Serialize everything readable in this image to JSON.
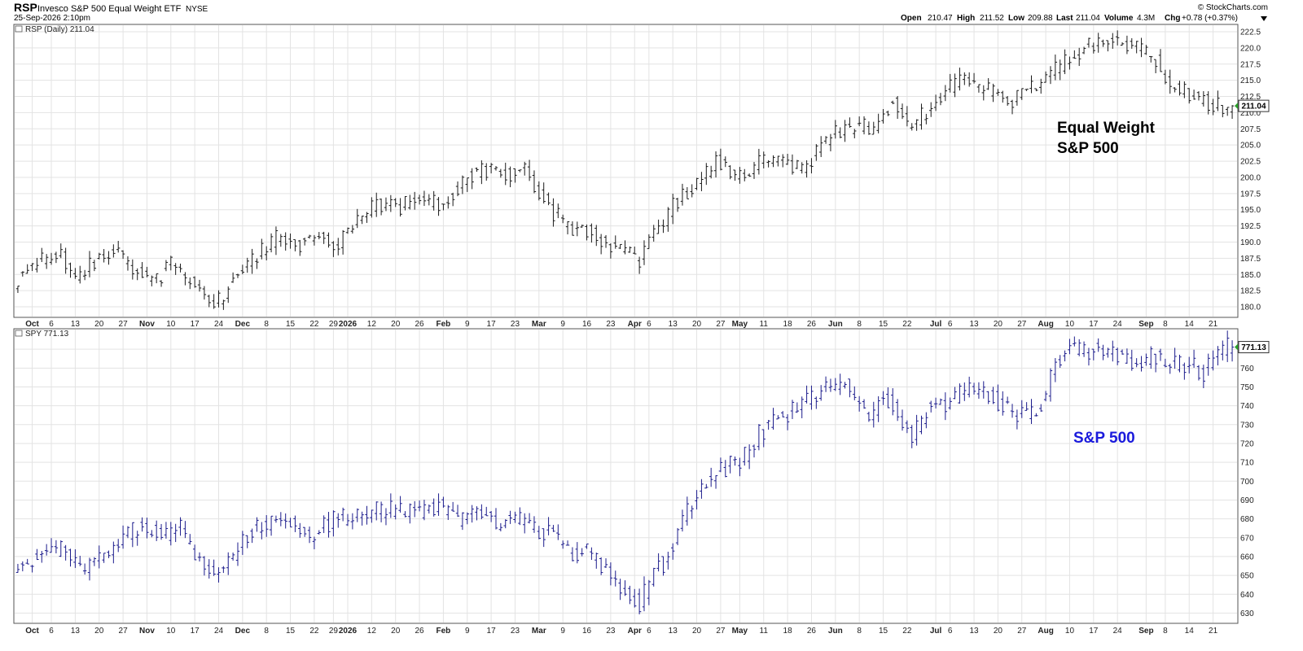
{
  "header": {
    "symbol": "RSP",
    "name": "Invesco S&P 500 Equal Weight ETF",
    "exchange": "NYSE",
    "datetime": "25-Sep-2026 2:10pm",
    "copyright": "© StockCharts.com",
    "quote": {
      "open_label": "Open",
      "open": "210.47",
      "high_label": "High",
      "high": "211.52",
      "low_label": "Low",
      "low": "209.88",
      "last_label": "Last",
      "last": "211.04",
      "volume_label": "Volume",
      "volume": "4.3M",
      "chg_label": "Chg",
      "chg": "+0.78 (+0.37%)"
    }
  },
  "colors": {
    "rsp_bars": "#1a1a1a",
    "spy_bars": "#1c1c8c",
    "grid": "#e3e3e3",
    "annotation_black": "#000000",
    "annotation_blue": "#1a1adc",
    "last_marker": "#2aa02a"
  },
  "x_axis": {
    "labels": [
      {
        "text": "Oct",
        "bold": true,
        "bar": 3
      },
      {
        "text": "6",
        "bold": false,
        "bar": 7
      },
      {
        "text": "13",
        "bold": false,
        "bar": 12
      },
      {
        "text": "20",
        "bold": false,
        "bar": 17
      },
      {
        "text": "27",
        "bold": false,
        "bar": 22
      },
      {
        "text": "Nov",
        "bold": true,
        "bar": 27
      },
      {
        "text": "10",
        "bold": false,
        "bar": 32
      },
      {
        "text": "17",
        "bold": false,
        "bar": 37
      },
      {
        "text": "24",
        "bold": false,
        "bar": 42
      },
      {
        "text": "Dec",
        "bold": true,
        "bar": 47
      },
      {
        "text": "8",
        "bold": false,
        "bar": 52
      },
      {
        "text": "15",
        "bold": false,
        "bar": 57
      },
      {
        "text": "22",
        "bold": false,
        "bar": 62
      },
      {
        "text": "29",
        "bold": false,
        "bar": 66
      },
      {
        "text": "2026",
        "bold": true,
        "bar": 69
      },
      {
        "text": "12",
        "bold": false,
        "bar": 74
      },
      {
        "text": "20",
        "bold": false,
        "bar": 79
      },
      {
        "text": "26",
        "bold": false,
        "bar": 84
      },
      {
        "text": "Feb",
        "bold": true,
        "bar": 89
      },
      {
        "text": "9",
        "bold": false,
        "bar": 94
      },
      {
        "text": "17",
        "bold": false,
        "bar": 99
      },
      {
        "text": "23",
        "bold": false,
        "bar": 104
      },
      {
        "text": "Mar",
        "bold": true,
        "bar": 109
      },
      {
        "text": "9",
        "bold": false,
        "bar": 114
      },
      {
        "text": "16",
        "bold": false,
        "bar": 119
      },
      {
        "text": "23",
        "bold": false,
        "bar": 124
      },
      {
        "text": "Apr",
        "bold": true,
        "bar": 129
      },
      {
        "text": "6",
        "bold": false,
        "bar": 132
      },
      {
        "text": "13",
        "bold": false,
        "bar": 137
      },
      {
        "text": "20",
        "bold": false,
        "bar": 142
      },
      {
        "text": "27",
        "bold": false,
        "bar": 147
      },
      {
        "text": "May",
        "bold": true,
        "bar": 151
      },
      {
        "text": "11",
        "bold": false,
        "bar": 156
      },
      {
        "text": "18",
        "bold": false,
        "bar": 161
      },
      {
        "text": "26",
        "bold": false,
        "bar": 166
      },
      {
        "text": "Jun",
        "bold": true,
        "bar": 171
      },
      {
        "text": "8",
        "bold": false,
        "bar": 176
      },
      {
        "text": "15",
        "bold": false,
        "bar": 181
      },
      {
        "text": "22",
        "bold": false,
        "bar": 186
      },
      {
        "text": "Jul",
        "bold": true,
        "bar": 192
      },
      {
        "text": "6",
        "bold": false,
        "bar": 195
      },
      {
        "text": "13",
        "bold": false,
        "bar": 200
      },
      {
        "text": "20",
        "bold": false,
        "bar": 205
      },
      {
        "text": "27",
        "bold": false,
        "bar": 210
      },
      {
        "text": "Aug",
        "bold": true,
        "bar": 215
      },
      {
        "text": "10",
        "bold": false,
        "bar": 220
      },
      {
        "text": "17",
        "bold": false,
        "bar": 225
      },
      {
        "text": "24",
        "bold": false,
        "bar": 230
      },
      {
        "text": "Sep",
        "bold": true,
        "bar": 236
      },
      {
        "text": "8",
        "bold": false,
        "bar": 240
      },
      {
        "text": "14",
        "bold": false,
        "bar": 245
      },
      {
        "text": "21",
        "bold": false,
        "bar": 250
      }
    ]
  },
  "chart_data": [
    {
      "type": "ohlc",
      "panel_label": "RSP (Daily) 211.04",
      "annotation": "Equal Weight\nS&P 500",
      "last_value": "211.04",
      "ylim": [
        179,
        223
      ],
      "yticks": [
        180.0,
        182.5,
        185.0,
        187.5,
        190.0,
        192.5,
        195.0,
        197.5,
        200.0,
        202.5,
        205.0,
        207.5,
        210.0,
        212.5,
        215.0,
        217.5,
        220.0,
        222.5
      ],
      "grid": true,
      "n_bars": 255,
      "anchors": [
        [
          0,
          184.5
        ],
        [
          4,
          186.5
        ],
        [
          8,
          188.8
        ],
        [
          12,
          184.0
        ],
        [
          15,
          186.5
        ],
        [
          20,
          188.6
        ],
        [
          24,
          186.2
        ],
        [
          28,
          183.5
        ],
        [
          32,
          186.5
        ],
        [
          35,
          184.5
        ],
        [
          39,
          182.0
        ],
        [
          42,
          181.0
        ],
        [
          46,
          186.0
        ],
        [
          50,
          188.0
        ],
        [
          54,
          190.5
        ],
        [
          58,
          189.5
        ],
        [
          64,
          191.0
        ],
        [
          67,
          189.5
        ],
        [
          70,
          193.0
        ],
        [
          75,
          196.0
        ],
        [
          80,
          195.5
        ],
        [
          85,
          196.5
        ],
        [
          89,
          196.0
        ],
        [
          93,
          199.5
        ],
        [
          97,
          201.5
        ],
        [
          102,
          200.5
        ],
        [
          106,
          201.5
        ],
        [
          109,
          197.5
        ],
        [
          112,
          194.5
        ],
        [
          116,
          192.0
        ],
        [
          120,
          191.5
        ],
        [
          124,
          189.5
        ],
        [
          127,
          188.5
        ],
        [
          130,
          187.0
        ],
        [
          133,
          191.5
        ],
        [
          135,
          192.0
        ],
        [
          137,
          196.0
        ],
        [
          142,
          198.5
        ],
        [
          146,
          203.0
        ],
        [
          149,
          200.5
        ],
        [
          152,
          199.5
        ],
        [
          156,
          203.0
        ],
        [
          160,
          202.5
        ],
        [
          164,
          201.0
        ],
        [
          167,
          204.0
        ],
        [
          171,
          207.0
        ],
        [
          175,
          207.8
        ],
        [
          179,
          207.5
        ],
        [
          183,
          212.0
        ],
        [
          186,
          208.0
        ],
        [
          189,
          209.5
        ],
        [
          193,
          213.0
        ],
        [
          197,
          215.0
        ],
        [
          200,
          213.5
        ],
        [
          204,
          213.5
        ],
        [
          208,
          212.0
        ],
        [
          211,
          213.0
        ],
        [
          215,
          216.0
        ],
        [
          218,
          217.0
        ],
        [
          222,
          219.5
        ],
        [
          226,
          221.0
        ],
        [
          230,
          221.0
        ],
        [
          234,
          220.5
        ],
        [
          238,
          218.0
        ],
        [
          241,
          214.5
        ],
        [
          245,
          213.0
        ],
        [
          249,
          211.5
        ],
        [
          252,
          211.0
        ],
        [
          254,
          211.04
        ]
      ],
      "gaps": [
        [
          135,
          0.8
        ]
      ]
    },
    {
      "type": "ohlc",
      "panel_label": "SPY 771.13",
      "annotation": "S&P 500",
      "last_value": "771.13",
      "ylim": [
        625,
        780
      ],
      "yticks": [
        630,
        640,
        650,
        660,
        670,
        680,
        690,
        700,
        710,
        720,
        730,
        740,
        750,
        760,
        770
      ],
      "grid": true,
      "n_bars": 255,
      "anchors": [
        [
          0,
          653
        ],
        [
          5,
          661
        ],
        [
          10,
          664
        ],
        [
          13,
          652
        ],
        [
          17,
          658
        ],
        [
          20,
          664
        ],
        [
          23,
          672
        ],
        [
          26,
          676
        ],
        [
          30,
          670
        ],
        [
          34,
          675
        ],
        [
          37,
          660
        ],
        [
          41,
          652
        ],
        [
          44,
          658
        ],
        [
          48,
          672
        ],
        [
          53,
          678
        ],
        [
          57,
          677
        ],
        [
          61,
          670
        ],
        [
          66,
          680
        ],
        [
          70,
          680
        ],
        [
          75,
          684
        ],
        [
          80,
          685
        ],
        [
          84,
          682
        ],
        [
          88,
          688
        ],
        [
          92,
          679
        ],
        [
          96,
          686
        ],
        [
          100,
          676
        ],
        [
          104,
          681
        ],
        [
          108,
          676
        ],
        [
          111,
          672
        ],
        [
          115,
          663
        ],
        [
          119,
          662
        ],
        [
          123,
          652
        ],
        [
          127,
          642
        ],
        [
          130,
          634
        ],
        [
          133,
          652
        ],
        [
          135,
          656
        ],
        [
          137,
          668
        ],
        [
          140,
          685
        ],
        [
          144,
          700
        ],
        [
          148,
          707
        ],
        [
          152,
          713
        ],
        [
          155,
          725
        ],
        [
          159,
          735
        ],
        [
          163,
          738
        ],
        [
          167,
          745
        ],
        [
          171,
          752
        ],
        [
          173,
          753
        ],
        [
          175,
          742
        ],
        [
          178,
          733
        ],
        [
          181,
          748
        ],
        [
          184,
          736
        ],
        [
          187,
          722
        ],
        [
          190,
          738
        ],
        [
          194,
          742
        ],
        [
          198,
          748
        ],
        [
          202,
          748
        ],
        [
          206,
          740
        ],
        [
          210,
          735
        ],
        [
          214,
          740
        ],
        [
          217,
          765
        ],
        [
          220,
          770
        ],
        [
          224,
          770
        ],
        [
          227,
          770
        ],
        [
          231,
          764
        ],
        [
          235,
          764
        ],
        [
          238,
          766
        ],
        [
          241,
          762
        ],
        [
          245,
          761
        ],
        [
          248,
          758
        ],
        [
          251,
          770
        ],
        [
          254,
          771.13
        ]
      ],
      "gaps": [
        [
          135,
          6
        ]
      ]
    }
  ]
}
